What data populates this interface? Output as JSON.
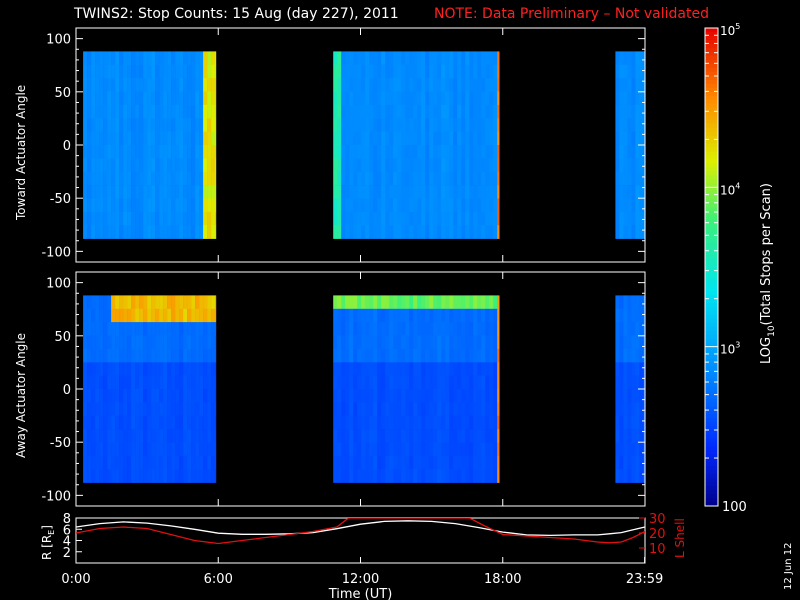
{
  "title": {
    "main": "TWINS2: Stop Counts: 15 Aug (day 227), 2011",
    "note": "NOTE: Data Preliminary – Not validated"
  },
  "colors": {
    "background": "#000000",
    "axes": "#ffffff",
    "note": "#ff2020",
    "r_line": "#ffffff",
    "lshell_line": "#e01010"
  },
  "colorbar": {
    "label": "LOG10(Total Stops per Scan)",
    "label_main": "LOG",
    "label_sub": "10",
    "label_rest": "(Total Stops per Scan)",
    "scale": "log",
    "range": [
      100,
      100000
    ],
    "ticks": [
      {
        "value": 100,
        "label": "100"
      },
      {
        "value": 1000,
        "base": "10",
        "exp": "3"
      },
      {
        "value": 10000,
        "base": "10",
        "exp": "4"
      },
      {
        "value": 100000,
        "base": "10",
        "exp": "5"
      }
    ]
  },
  "footer": {
    "xlabel": "Time (UT)",
    "date_stamp": "12 Jun 12"
  },
  "chart_data": [
    {
      "type": "heatmap",
      "ylabel": "Toward Actuator Angle",
      "xlim_hours": [
        0,
        24
      ],
      "ylim": [
        -110,
        110
      ],
      "y_data_range": [
        -88,
        88
      ],
      "yticks": [
        -100,
        -50,
        0,
        50,
        100
      ],
      "xticks_hours": [
        0,
        6,
        12,
        18,
        24
      ],
      "color_scale": "LOG10(Total Stops per Scan), 100 to 1e5",
      "coverage_intervals_hours": [
        [
          0.3,
          5.9
        ],
        [
          10.85,
          17.85
        ],
        [
          22.75,
          24
        ]
      ],
      "features": [
        {
          "desc": "background level",
          "value_approx": 700
        },
        {
          "desc": "bright band at end of first interval",
          "time_hours": [
            5.3,
            5.9
          ],
          "value_approx": 20000
        },
        {
          "desc": "bright edge at end of second interval",
          "time_hours": [
            17.7,
            17.85
          ],
          "value_approx": 50000
        },
        {
          "desc": "bright edge at start of second interval",
          "time_hours": [
            10.85,
            11.2
          ],
          "value_approx": 5000
        }
      ]
    },
    {
      "type": "heatmap",
      "ylabel": "Away Actuator Angle",
      "xlim_hours": [
        0,
        24
      ],
      "ylim": [
        -110,
        110
      ],
      "y_data_range": [
        -88,
        88
      ],
      "yticks": [
        -100,
        -50,
        0,
        50,
        100
      ],
      "xticks_hours": [
        0,
        6,
        12,
        18,
        24
      ],
      "color_scale": "LOG10(Total Stops per Scan), 100 to 1e5",
      "coverage_intervals_hours": [
        [
          0.3,
          5.9
        ],
        [
          10.85,
          17.85
        ],
        [
          22.75,
          24
        ]
      ],
      "features": [
        {
          "desc": "background level",
          "value_approx": 500
        },
        {
          "desc": "high-angle enhancement",
          "time_hours": [
            1.5,
            5.9
          ],
          "angle": [
            60,
            88
          ],
          "value_approx": 30000
        },
        {
          "desc": "top-edge enhancement second interval",
          "time_hours": [
            10.85,
            17.85
          ],
          "angle": [
            80,
            88
          ],
          "value_approx": 10000
        },
        {
          "desc": "bright edge at end of second interval",
          "time_hours": [
            17.7,
            17.85
          ],
          "value_approx": 50000
        }
      ]
    },
    {
      "type": "line",
      "xlim_hours": [
        0,
        24
      ],
      "xticks": [
        {
          "value": 0,
          "label": "0:00"
        },
        {
          "value": 6,
          "label": "6:00"
        },
        {
          "value": 12,
          "label": "12:00"
        },
        {
          "value": 18,
          "label": "18:00"
        },
        {
          "value": 23.983,
          "label": "23:59"
        }
      ],
      "ylabel_left": "R [RE]",
      "ylabel_left_main": "R [R",
      "ylabel_left_sub": "E",
      "ylabel_left_end": "]",
      "ylim_left": [
        0,
        8
      ],
      "yticks_left": [
        2,
        4,
        6,
        8
      ],
      "ylabel_right": "L Shell",
      "ylim_right": [
        0,
        30
      ],
      "yticks_right": [
        10,
        20,
        30
      ],
      "series": [
        {
          "name": "R [RE]",
          "axis": "left",
          "x": [
            0,
            1,
            2,
            3,
            4,
            5,
            6,
            7,
            8,
            9,
            10,
            11,
            12,
            13,
            14,
            15,
            16,
            17,
            18,
            19,
            20,
            21,
            22,
            22.5,
            23,
            23.5,
            24
          ],
          "y": [
            6.4,
            7.0,
            7.3,
            7.1,
            6.6,
            6.0,
            5.3,
            5.1,
            5.1,
            5.2,
            5.4,
            6.1,
            6.9,
            7.4,
            7.5,
            7.4,
            7.0,
            6.3,
            5.5,
            5.0,
            4.9,
            5.0,
            5.0,
            5.2,
            5.4,
            5.9,
            6.4
          ]
        },
        {
          "name": "L Shell",
          "axis": "right",
          "x": [
            0,
            1,
            2,
            3,
            4,
            5,
            6,
            7,
            8,
            9,
            10,
            11,
            11.5,
            16.6,
            17.2,
            18,
            19,
            20,
            21,
            22,
            22.5,
            23,
            23.5,
            24
          ],
          "y": [
            20,
            23,
            24,
            23,
            19,
            15,
            13,
            15,
            17,
            19,
            21,
            24,
            30,
            30,
            25,
            19,
            18,
            17,
            16,
            14,
            13.5,
            14,
            17,
            21
          ]
        }
      ]
    }
  ]
}
